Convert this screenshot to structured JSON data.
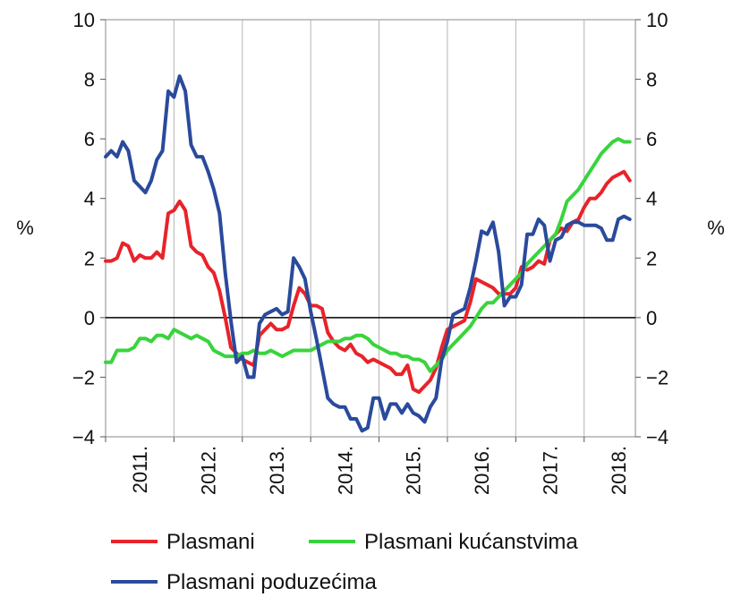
{
  "chart_data": {
    "type": "line",
    "ylim": [
      -4,
      10
    ],
    "y_ticks": [
      "−4",
      "−2",
      "0",
      "2",
      "4",
      "6",
      "8",
      "10"
    ],
    "y_tick_values": [
      -4,
      -2,
      0,
      2,
      4,
      6,
      8,
      10
    ],
    "unit_left": "%",
    "unit_right": "%",
    "x_start": 2011.0,
    "x_end": 2018.75,
    "x_ticks": [
      "2011.",
      "2012.",
      "2013.",
      "2014.",
      "2015.",
      "2016.",
      "2017.",
      "2018."
    ],
    "x_tick_centers": [
      2011.5,
      2012.5,
      2013.5,
      2014.5,
      2015.5,
      2016.5,
      2017.5,
      2018.5
    ],
    "gridlines_at": [
      2012,
      2013,
      2014,
      2015,
      2016,
      2017,
      2018
    ],
    "zero_line": true,
    "legend_position": "bottom",
    "series": [
      {
        "name": "Plasmani",
        "color": "#e8232a",
        "x": [
          2011.0,
          2011.083,
          2011.167,
          2011.25,
          2011.333,
          2011.417,
          2011.5,
          2011.583,
          2011.667,
          2011.75,
          2011.833,
          2011.917,
          2012.0,
          2012.083,
          2012.167,
          2012.25,
          2012.333,
          2012.417,
          2012.5,
          2012.583,
          2012.667,
          2012.75,
          2012.833,
          2012.917,
          2013.0,
          2013.083,
          2013.167,
          2013.25,
          2013.333,
          2013.417,
          2013.5,
          2013.583,
          2013.667,
          2013.75,
          2013.833,
          2013.917,
          2014.0,
          2014.083,
          2014.167,
          2014.25,
          2014.333,
          2014.417,
          2014.5,
          2014.583,
          2014.667,
          2014.75,
          2014.833,
          2014.917,
          2015.0,
          2015.083,
          2015.167,
          2015.25,
          2015.333,
          2015.417,
          2015.5,
          2015.583,
          2015.667,
          2015.75,
          2015.833,
          2015.917,
          2016.0,
          2016.083,
          2016.167,
          2016.25,
          2016.333,
          2016.417,
          2016.5,
          2016.583,
          2016.667,
          2016.75,
          2016.833,
          2016.917,
          2017.0,
          2017.083,
          2017.167,
          2017.25,
          2017.333,
          2017.417,
          2017.5,
          2017.583,
          2017.667,
          2017.75,
          2017.833,
          2017.917,
          2018.0,
          2018.083,
          2018.167,
          2018.25,
          2018.333,
          2018.417,
          2018.5,
          2018.583,
          2018.667
        ],
        "values": [
          1.9,
          1.9,
          2.0,
          2.5,
          2.4,
          1.9,
          2.1,
          2.0,
          2.0,
          2.2,
          2.0,
          3.5,
          3.6,
          3.9,
          3.6,
          2.4,
          2.2,
          2.1,
          1.7,
          1.5,
          0.9,
          0.0,
          -1.0,
          -1.2,
          -1.4,
          -1.5,
          -1.6,
          -0.6,
          -0.4,
          -0.2,
          -0.4,
          -0.4,
          -0.3,
          0.4,
          1.0,
          0.8,
          0.4,
          0.4,
          0.3,
          -0.5,
          -0.8,
          -1.0,
          -1.1,
          -0.9,
          -1.2,
          -1.3,
          -1.5,
          -1.4,
          -1.5,
          -1.6,
          -1.7,
          -1.9,
          -1.9,
          -1.6,
          -2.4,
          -2.5,
          -2.3,
          -2.1,
          -1.7,
          -1.0,
          -0.4,
          -0.3,
          -0.2,
          -0.1,
          0.5,
          1.3,
          1.2,
          1.1,
          1.0,
          0.8,
          0.8,
          0.8,
          1.0,
          1.7,
          1.6,
          1.7,
          1.9,
          1.8,
          2.6,
          2.8,
          3.0,
          2.9,
          3.2,
          3.3,
          3.7,
          4.0,
          4.0,
          4.2,
          4.5,
          4.7,
          4.8,
          4.9,
          4.6
        ]
      },
      {
        "name": "Plasmani kućanstvima",
        "color": "#39d43d",
        "x": [
          2011.0,
          2011.083,
          2011.167,
          2011.25,
          2011.333,
          2011.417,
          2011.5,
          2011.583,
          2011.667,
          2011.75,
          2011.833,
          2011.917,
          2012.0,
          2012.083,
          2012.167,
          2012.25,
          2012.333,
          2012.417,
          2012.5,
          2012.583,
          2012.667,
          2012.75,
          2012.833,
          2012.917,
          2013.0,
          2013.083,
          2013.167,
          2013.25,
          2013.333,
          2013.417,
          2013.5,
          2013.583,
          2013.667,
          2013.75,
          2013.833,
          2013.917,
          2014.0,
          2014.083,
          2014.167,
          2014.25,
          2014.333,
          2014.417,
          2014.5,
          2014.583,
          2014.667,
          2014.75,
          2014.833,
          2014.917,
          2015.0,
          2015.083,
          2015.167,
          2015.25,
          2015.333,
          2015.417,
          2015.5,
          2015.583,
          2015.667,
          2015.75,
          2015.833,
          2015.917,
          2016.0,
          2016.083,
          2016.167,
          2016.25,
          2016.333,
          2016.417,
          2016.5,
          2016.583,
          2016.667,
          2016.75,
          2016.833,
          2016.917,
          2017.0,
          2017.083,
          2017.167,
          2017.25,
          2017.333,
          2017.417,
          2017.5,
          2017.583,
          2017.667,
          2017.75,
          2017.833,
          2017.917,
          2018.0,
          2018.083,
          2018.167,
          2018.25,
          2018.333,
          2018.417,
          2018.5,
          2018.583,
          2018.667
        ],
        "values": [
          -1.5,
          -1.5,
          -1.1,
          -1.1,
          -1.1,
          -1.0,
          -0.7,
          -0.7,
          -0.8,
          -0.6,
          -0.6,
          -0.7,
          -0.4,
          -0.5,
          -0.6,
          -0.7,
          -0.6,
          -0.7,
          -0.8,
          -1.1,
          -1.2,
          -1.3,
          -1.3,
          -1.3,
          -1.2,
          -1.2,
          -1.1,
          -1.2,
          -1.2,
          -1.1,
          -1.2,
          -1.3,
          -1.2,
          -1.1,
          -1.1,
          -1.1,
          -1.1,
          -1.0,
          -0.9,
          -0.8,
          -0.8,
          -0.8,
          -0.7,
          -0.7,
          -0.6,
          -0.6,
          -0.7,
          -0.9,
          -1.0,
          -1.1,
          -1.2,
          -1.2,
          -1.3,
          -1.3,
          -1.4,
          -1.4,
          -1.5,
          -1.8,
          -1.6,
          -1.4,
          -1.1,
          -0.9,
          -0.7,
          -0.5,
          -0.3,
          0.0,
          0.3,
          0.5,
          0.5,
          0.7,
          0.9,
          1.1,
          1.3,
          1.5,
          1.8,
          2.0,
          2.2,
          2.4,
          2.6,
          2.8,
          3.3,
          3.9,
          4.1,
          4.3,
          4.6,
          4.9,
          5.2,
          5.5,
          5.7,
          5.9,
          6.0,
          5.9,
          5.9
        ]
      },
      {
        "name": "Plasmani poduzećima",
        "color": "#2a4a9c",
        "x": [
          2011.0,
          2011.083,
          2011.167,
          2011.25,
          2011.333,
          2011.417,
          2011.5,
          2011.583,
          2011.667,
          2011.75,
          2011.833,
          2011.917,
          2012.0,
          2012.083,
          2012.167,
          2012.25,
          2012.333,
          2012.417,
          2012.5,
          2012.583,
          2012.667,
          2012.75,
          2012.833,
          2012.917,
          2013.0,
          2013.083,
          2013.167,
          2013.25,
          2013.333,
          2013.417,
          2013.5,
          2013.583,
          2013.667,
          2013.75,
          2013.833,
          2013.917,
          2014.0,
          2014.083,
          2014.167,
          2014.25,
          2014.333,
          2014.417,
          2014.5,
          2014.583,
          2014.667,
          2014.75,
          2014.833,
          2014.917,
          2015.0,
          2015.083,
          2015.167,
          2015.25,
          2015.333,
          2015.417,
          2015.5,
          2015.583,
          2015.667,
          2015.75,
          2015.833,
          2015.917,
          2016.0,
          2016.083,
          2016.167,
          2016.25,
          2016.333,
          2016.417,
          2016.5,
          2016.583,
          2016.667,
          2016.75,
          2016.833,
          2016.917,
          2017.0,
          2017.083,
          2017.167,
          2017.25,
          2017.333,
          2017.417,
          2017.5,
          2017.583,
          2017.667,
          2017.75,
          2017.833,
          2017.917,
          2018.0,
          2018.083,
          2018.167,
          2018.25,
          2018.333,
          2018.417,
          2018.5,
          2018.583,
          2018.667
        ],
        "values": [
          5.4,
          5.6,
          5.4,
          5.9,
          5.6,
          4.6,
          4.4,
          4.2,
          4.6,
          5.3,
          5.6,
          7.6,
          7.4,
          8.1,
          7.6,
          5.8,
          5.4,
          5.4,
          4.9,
          4.3,
          3.5,
          1.5,
          -0.1,
          -1.5,
          -1.3,
          -2.0,
          -2.0,
          -0.2,
          0.1,
          0.2,
          0.3,
          0.1,
          0.2,
          2.0,
          1.7,
          1.3,
          0.2,
          -0.7,
          -1.7,
          -2.7,
          -2.9,
          -3.0,
          -3.0,
          -3.4,
          -3.4,
          -3.8,
          -3.7,
          -2.7,
          -2.7,
          -3.4,
          -2.9,
          -2.9,
          -3.2,
          -2.9,
          -3.2,
          -3.3,
          -3.5,
          -3.0,
          -2.7,
          -1.4,
          -0.8,
          0.1,
          0.2,
          0.3,
          1.0,
          1.9,
          2.9,
          2.8,
          3.2,
          2.2,
          0.4,
          0.7,
          0.7,
          1.1,
          2.8,
          2.8,
          3.3,
          3.1,
          1.9,
          2.6,
          2.7,
          3.1,
          3.2,
          3.2,
          3.1,
          3.1,
          3.1,
          3.0,
          2.6,
          2.6,
          3.3,
          3.4,
          3.3
        ]
      }
    ]
  }
}
